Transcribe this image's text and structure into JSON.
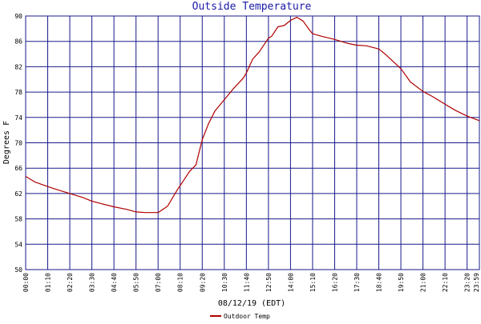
{
  "chart_data": {
    "type": "line",
    "title": "Outside Temperature",
    "xlabel": "08/12/19 (EDT)",
    "ylabel": "Degrees F",
    "ylim": [
      50,
      90
    ],
    "yticks": [
      50,
      54,
      58,
      62,
      66,
      70,
      74,
      78,
      82,
      86,
      90
    ],
    "x_ticks": [
      "00:00",
      "01:10",
      "02:20",
      "03:30",
      "04:40",
      "05:50",
      "07:00",
      "08:10",
      "09:20",
      "10:30",
      "11:40",
      "12:50",
      "14:00",
      "15:10",
      "16:20",
      "17:30",
      "18:40",
      "19:50",
      "21:00",
      "22:10",
      "23:20",
      "23:59"
    ],
    "grid": true,
    "legend_position": "bottom-left",
    "colors": {
      "line": "#b00000",
      "grid": "#1a1a8c",
      "title": "#1a1aa6"
    },
    "series": [
      {
        "name": "Outdoor Temp",
        "x": [
          "00:00",
          "00:30",
          "01:10",
          "01:40",
          "02:20",
          "03:00",
          "03:30",
          "04:00",
          "04:40",
          "05:20",
          "05:50",
          "06:20",
          "07:00",
          "07:30",
          "08:00",
          "08:40",
          "09:00",
          "09:20",
          "09:40",
          "10:00",
          "10:30",
          "11:00",
          "11:30",
          "11:40",
          "12:00",
          "12:20",
          "12:50",
          "13:00",
          "13:20",
          "13:40",
          "14:00",
          "14:20",
          "14:40",
          "15:00",
          "15:10",
          "15:40",
          "16:20",
          "17:00",
          "17:30",
          "18:00",
          "18:40",
          "19:00",
          "19:30",
          "19:50",
          "20:20",
          "21:00",
          "21:30",
          "22:10",
          "22:40",
          "23:20",
          "23:59"
        ],
        "y": [
          64.7,
          63.8,
          63.1,
          62.6,
          62.0,
          61.4,
          60.8,
          60.4,
          59.9,
          59.5,
          59.1,
          59.0,
          59.0,
          60.0,
          62.5,
          65.5,
          66.5,
          70.5,
          73.0,
          75.0,
          76.8,
          78.6,
          80.2,
          81.0,
          83.2,
          84.3,
          86.5,
          86.8,
          88.3,
          88.5,
          89.3,
          89.8,
          89.2,
          87.8,
          87.2,
          86.8,
          86.3,
          85.7,
          85.4,
          85.3,
          84.8,
          84.0,
          82.6,
          81.7,
          79.6,
          78.1,
          77.3,
          76.1,
          75.2,
          74.2,
          73.5
        ]
      }
    ]
  }
}
